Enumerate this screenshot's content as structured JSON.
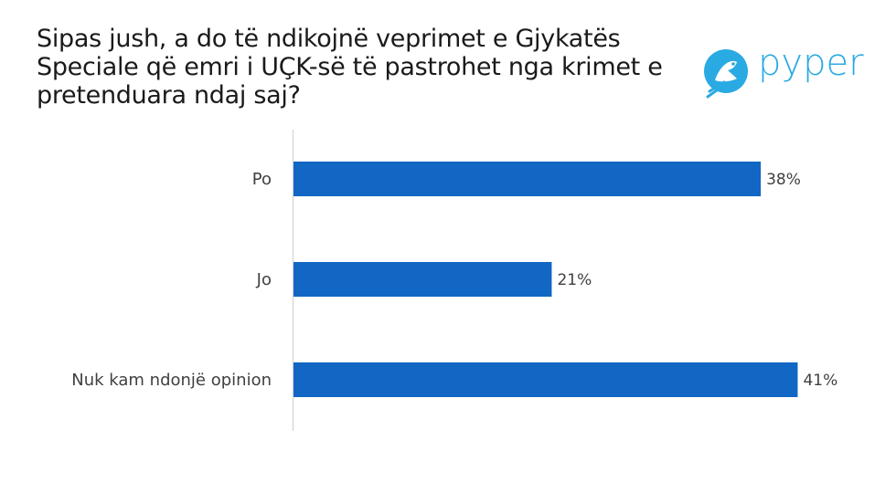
{
  "title": "Sipas jush, a do të ndikojnë veprimet e Gjykatës Speciale që emri i UÇK-së të pastrohet nga krimet e pretenduara ndaj saj?",
  "logo": {
    "text": "pyper",
    "icon": "bird-icon",
    "color": "#2aaae2"
  },
  "chart_data": {
    "type": "bar",
    "orientation": "horizontal",
    "categories": [
      "Po",
      "Jo",
      "Nuk kam ndonjë opinion"
    ],
    "values": [
      38,
      21,
      41
    ],
    "value_labels": [
      "38%",
      "21%",
      "41%"
    ],
    "bar_color": "#1266c4",
    "xlim": [
      0,
      45
    ],
    "grid": false
  }
}
